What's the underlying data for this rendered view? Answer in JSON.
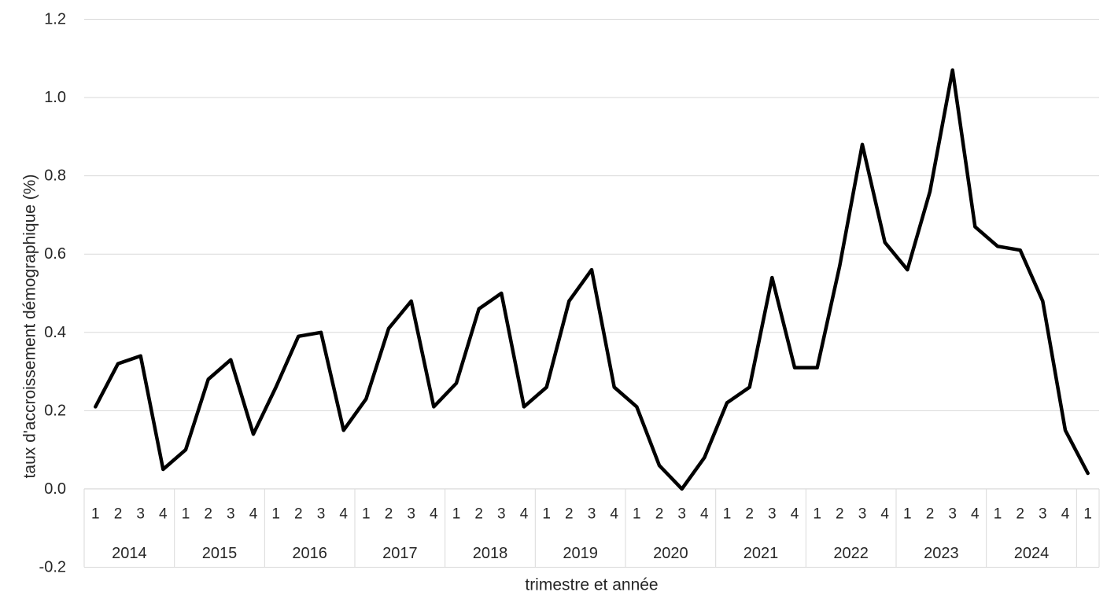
{
  "chart_data": {
    "type": "line",
    "title": "",
    "xlabel": "trimestre et année",
    "ylabel": "taux d'accroissement démographique (%)",
    "ylim": [
      -0.2,
      1.2
    ],
    "ytick_step": 0.2,
    "ytick_labels": [
      "1.2",
      "1.0",
      "0.8",
      "0.6",
      "0.4",
      "0.2",
      "0.0",
      "-0.2"
    ],
    "grid": true,
    "legend": "none",
    "line_color": "#000000",
    "grid_color": "#d9d9d9",
    "text_color": "#262626",
    "groups": [
      {
        "year": "2014",
        "quarters": [
          "1",
          "2",
          "3",
          "4"
        ],
        "values": [
          0.21,
          0.32,
          0.34,
          0.05
        ]
      },
      {
        "year": "2015",
        "quarters": [
          "1",
          "2",
          "3",
          "4"
        ],
        "values": [
          0.1,
          0.28,
          0.33,
          0.14
        ]
      },
      {
        "year": "2016",
        "quarters": [
          "1",
          "2",
          "3",
          "4"
        ],
        "values": [
          0.26,
          0.39,
          0.4,
          0.15
        ]
      },
      {
        "year": "2017",
        "quarters": [
          "1",
          "2",
          "3",
          "4"
        ],
        "values": [
          0.23,
          0.41,
          0.48,
          0.21
        ]
      },
      {
        "year": "2018",
        "quarters": [
          "1",
          "2",
          "3",
          "4"
        ],
        "values": [
          0.27,
          0.46,
          0.5,
          0.21
        ]
      },
      {
        "year": "2019",
        "quarters": [
          "1",
          "2",
          "3",
          "4"
        ],
        "values": [
          0.26,
          0.48,
          0.56,
          0.26
        ]
      },
      {
        "year": "2020",
        "quarters": [
          "1",
          "2",
          "3",
          "4"
        ],
        "values": [
          0.21,
          0.06,
          0.0,
          0.08
        ]
      },
      {
        "year": "2021",
        "quarters": [
          "1",
          "2",
          "3",
          "4"
        ],
        "values": [
          0.22,
          0.26,
          0.54,
          0.31
        ]
      },
      {
        "year": "2022",
        "quarters": [
          "1",
          "2",
          "3",
          "4"
        ],
        "values": [
          0.31,
          0.57,
          0.88,
          0.63
        ]
      },
      {
        "year": "2023",
        "quarters": [
          "1",
          "2",
          "3",
          "4"
        ],
        "values": [
          0.56,
          0.76,
          1.07,
          0.67
        ]
      },
      {
        "year": "2024",
        "quarters": [
          "1",
          "2",
          "3",
          "4"
        ],
        "values": [
          0.62,
          0.61,
          0.48,
          0.15
        ]
      },
      {
        "year": "",
        "quarters": [
          "1"
        ],
        "values": [
          0.04
        ]
      }
    ]
  }
}
